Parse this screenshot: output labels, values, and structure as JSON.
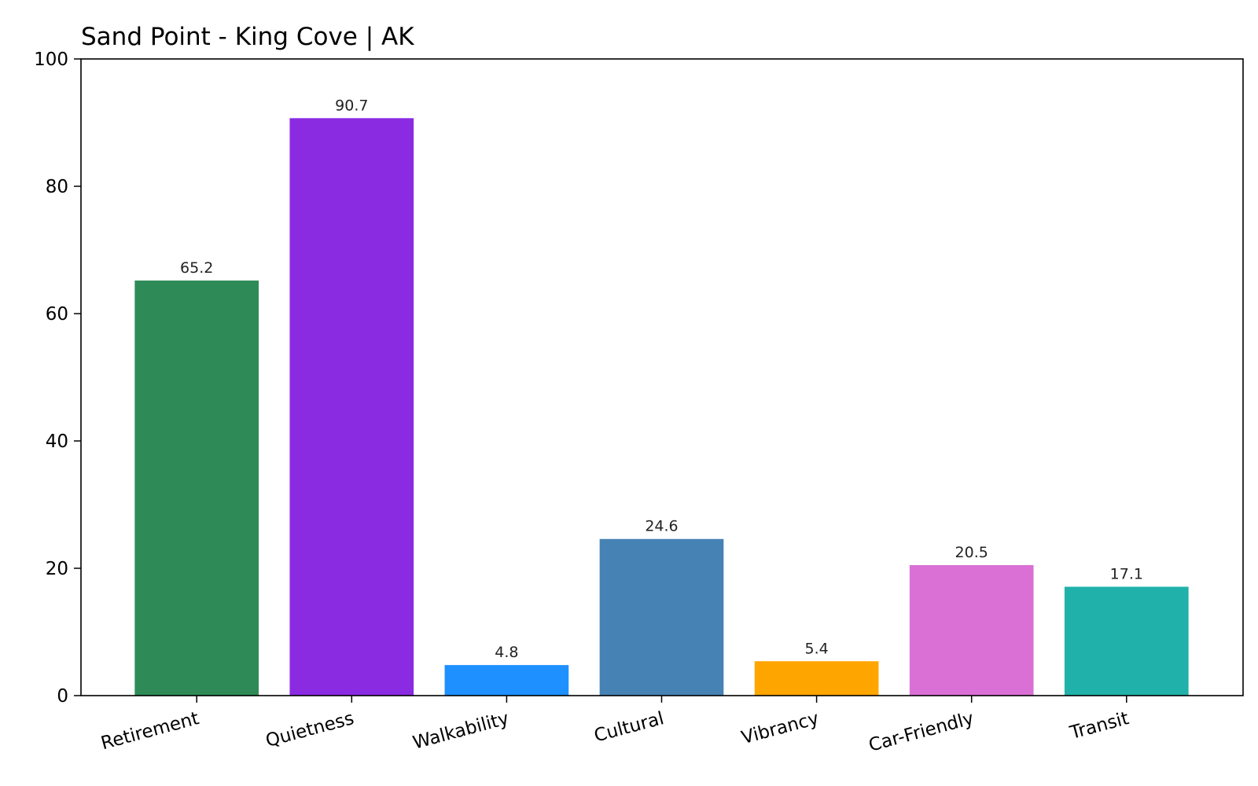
{
  "chart_data": {
    "type": "bar",
    "title": "Sand Point - King Cove | AK",
    "xlabel": "",
    "ylabel": "",
    "ylim": [
      0,
      100
    ],
    "yticks": [
      0,
      20,
      40,
      60,
      80,
      100
    ],
    "categories": [
      "Retirement",
      "Quietness",
      "Walkability",
      "Cultural",
      "Vibrancy",
      "Car-Friendly",
      "Transit"
    ],
    "values": [
      65.2,
      90.7,
      4.8,
      24.6,
      5.4,
      20.5,
      17.1
    ],
    "value_labels": [
      "65.2",
      "90.7",
      "4.8",
      "24.6",
      "5.4",
      "20.5",
      "17.1"
    ],
    "colors": [
      "#2E8B57",
      "#8A2BE2",
      "#1E90FF",
      "#4682B4",
      "#FFA500",
      "#DA70D6",
      "#20B2AA"
    ],
    "grid": false,
    "legend": "none"
  }
}
